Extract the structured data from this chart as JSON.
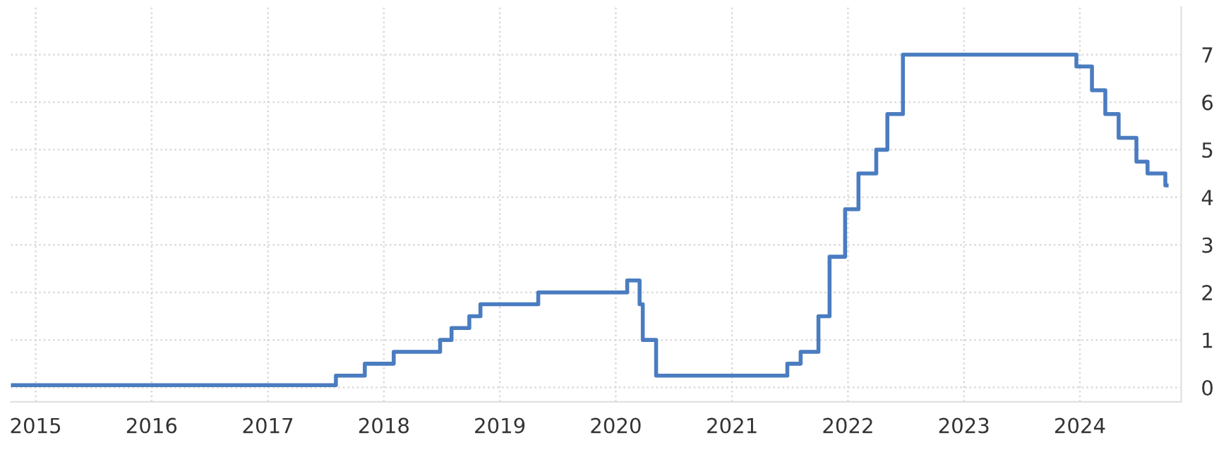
{
  "chart_data": {
    "type": "step",
    "grid": true,
    "line_style": "solid",
    "marker": "none",
    "x": [
      "2014-10-15",
      "2017-08-03",
      "2017-11-02",
      "2018-02-01",
      "2018-06-27",
      "2018-08-02",
      "2018-09-27",
      "2018-11-01",
      "2019-05-02",
      "2020-02-06",
      "2020-03-16",
      "2020-03-26",
      "2020-05-07",
      "2021-06-24",
      "2021-08-05",
      "2021-09-30",
      "2021-11-04",
      "2021-12-23",
      "2022-02-03",
      "2022-03-31",
      "2022-05-05",
      "2022-06-23",
      "2023-12-21",
      "2024-02-08",
      "2024-03-21",
      "2024-05-02",
      "2024-06-27",
      "2024-08-01",
      "2024-09-26",
      "2024-09-30"
    ],
    "series": [
      {
        "color": "#4a7cc0",
        "values": [
          0.05,
          0.25,
          0.5,
          0.75,
          1.0,
          1.25,
          1.5,
          1.75,
          2.0,
          2.25,
          1.75,
          1.0,
          0.25,
          0.5,
          0.75,
          1.5,
          2.75,
          3.75,
          4.5,
          5.0,
          5.75,
          7.0,
          6.75,
          6.25,
          5.75,
          5.25,
          4.75,
          4.5,
          4.25,
          4.25
        ]
      }
    ],
    "xlim": [
      "2014-10-15",
      "2024-11-15"
    ],
    "xticks": [
      {
        "value": "2015",
        "label": "2015"
      },
      {
        "value": "2016",
        "label": "2016"
      },
      {
        "value": "2017",
        "label": "2017"
      },
      {
        "value": "2018",
        "label": "2018"
      },
      {
        "value": "2019",
        "label": "2019"
      },
      {
        "value": "2020",
        "label": "2020"
      },
      {
        "value": "2021",
        "label": "2021"
      },
      {
        "value": "2022",
        "label": "2022"
      },
      {
        "value": "2023",
        "label": "2023"
      },
      {
        "value": "2024",
        "label": "2024"
      }
    ],
    "ylim": [
      -0.3,
      8.0
    ],
    "yticks": [
      0,
      1,
      2,
      3,
      4,
      5,
      6,
      7
    ]
  }
}
